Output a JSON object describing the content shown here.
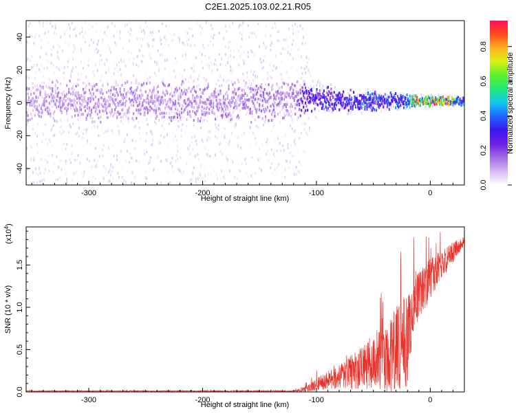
{
  "title": "C2E1.2025.103.02.21.R05",
  "colors": {
    "background": "#ffffff",
    "snr_line": "#e8332b",
    "spectrogram_palette": [
      "#ffffff",
      "#d6b8f2",
      "#a46be6",
      "#6e1fe6",
      "#3a18f0",
      "#1e64ff",
      "#12c7f2",
      "#22e87a",
      "#58ee2a",
      "#d8f214",
      "#ffb020",
      "#ff4a1a",
      "#ff1060"
    ]
  },
  "chart_data": [
    {
      "type": "heatmap",
      "title": "",
      "xlabel": "Height of straight line (km)",
      "ylabel": "Frequency (Hz)",
      "xlim": [
        -355,
        30
      ],
      "ylim": [
        -50,
        50
      ],
      "x_ticks": [
        -300,
        -200,
        -100,
        0
      ],
      "y_ticks": [
        -40,
        -20,
        0,
        20,
        40
      ],
      "x_tick_labels": [
        "-300",
        "-200",
        "-100",
        "0"
      ],
      "y_tick_labels": [
        "-40",
        "-20",
        "0",
        "20",
        "40"
      ],
      "colorbar": {
        "label": "Normalized spectral amplitude",
        "range": [
          0,
          0.95
        ],
        "ticks": [
          0.0,
          0.2,
          0.4,
          0.6,
          0.8
        ],
        "tick_labels": [
          "0.0",
          "0.2",
          "0.4",
          "0.6",
          "0.8"
        ]
      },
      "band_center_hz": [
        {
          "x": -355,
          "y": 1
        },
        {
          "x": -250,
          "y": 0
        },
        {
          "x": -150,
          "y": 1
        },
        {
          "x": -110,
          "y": 3
        },
        {
          "x": -60,
          "y": 1
        },
        {
          "x": -20,
          "y": 1
        },
        {
          "x": 30,
          "y": 1
        }
      ],
      "band_core_halfwidth_hz": [
        {
          "x": -355,
          "y": 10
        },
        {
          "x": -120,
          "y": 10
        },
        {
          "x": -100,
          "y": 6
        },
        {
          "x": -50,
          "y": 5
        },
        {
          "x": -15,
          "y": 3
        },
        {
          "x": 30,
          "y": 2
        }
      ],
      "core_amplitude": [
        {
          "x": -355,
          "y": 0.12
        },
        {
          "x": -120,
          "y": 0.15
        },
        {
          "x": -110,
          "y": 0.28
        },
        {
          "x": -90,
          "y": 0.32
        },
        {
          "x": -50,
          "y": 0.36
        },
        {
          "x": -20,
          "y": 0.4
        },
        {
          "x": -15,
          "y": 0.8
        },
        {
          "x": 0,
          "y": 0.75
        },
        {
          "x": 10,
          "y": 0.85
        },
        {
          "x": 30,
          "y": 0.35
        }
      ],
      "scatter_halfwidth_hz": [
        {
          "x": -355,
          "y": 50
        },
        {
          "x": -112,
          "y": 48
        },
        {
          "x": -105,
          "y": 12
        },
        {
          "x": -80,
          "y": 9
        },
        {
          "x": -20,
          "y": 5
        },
        {
          "x": 30,
          "y": 3
        }
      ]
    },
    {
      "type": "line",
      "title": "",
      "xlabel": "Height of straight line (km)",
      "ylabel": "SNR (10 * v/v)",
      "y_scale_label": "(x10",
      "y_scale_exponent": "4",
      "y_scale_close": ")",
      "xlim": [
        -355,
        30
      ],
      "ylim": [
        0,
        1.95
      ],
      "x_ticks": [
        -300,
        -200,
        -100,
        0
      ],
      "y_ticks": [
        0.0,
        0.5,
        1.0,
        1.5
      ],
      "x_tick_labels": [
        "-300",
        "-200",
        "-100",
        "0"
      ],
      "y_tick_labels": [
        "0.0",
        "0.5",
        "1.0",
        "1.5"
      ],
      "series": [
        {
          "envelope_mean": [
            {
              "x": -355,
              "y": 0.01
            },
            {
              "x": -120,
              "y": 0.01
            },
            {
              "x": -110,
              "y": 0.03
            },
            {
              "x": -100,
              "y": 0.09
            },
            {
              "x": -80,
              "y": 0.18
            },
            {
              "x": -60,
              "y": 0.28
            },
            {
              "x": -40,
              "y": 0.4
            },
            {
              "x": -25,
              "y": 0.55
            },
            {
              "x": -18,
              "y": 0.7
            },
            {
              "x": -15,
              "y": 1.05
            },
            {
              "x": -5,
              "y": 1.25
            },
            {
              "x": 10,
              "y": 1.5
            },
            {
              "x": 20,
              "y": 1.65
            },
            {
              "x": 30,
              "y": 1.78
            }
          ],
          "envelope_spread": [
            {
              "x": -355,
              "y": 0.005
            },
            {
              "x": -120,
              "y": 0.006
            },
            {
              "x": -110,
              "y": 0.03
            },
            {
              "x": -80,
              "y": 0.15
            },
            {
              "x": -50,
              "y": 0.3
            },
            {
              "x": -30,
              "y": 0.5
            },
            {
              "x": -20,
              "y": 0.6
            },
            {
              "x": -15,
              "y": 0.35
            },
            {
              "x": 0,
              "y": 0.25
            },
            {
              "x": 30,
              "y": 0.06
            }
          ]
        }
      ]
    }
  ]
}
